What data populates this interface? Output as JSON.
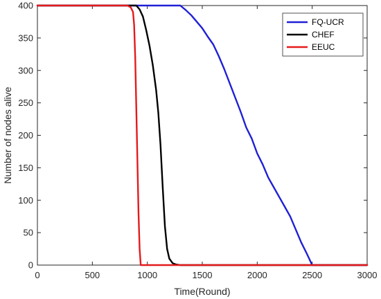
{
  "chart_data": {
    "type": "line",
    "title": "",
    "xlabel": "Time(Round)",
    "ylabel": "Number of nodes alive",
    "xlim": [
      0,
      3000
    ],
    "ylim": [
      0,
      400
    ],
    "xticks": [
      0,
      500,
      1000,
      1500,
      2000,
      2500,
      3000
    ],
    "yticks": [
      0,
      50,
      100,
      150,
      200,
      250,
      300,
      350,
      400
    ],
    "xtick_labels": [
      "0",
      "500",
      "1000",
      "1500",
      "2000",
      "2500",
      "3000"
    ],
    "ytick_labels": [
      "0",
      "50",
      "100",
      "150",
      "200",
      "250",
      "300",
      "350",
      "400"
    ],
    "grid": false,
    "legend_position": "top-right",
    "series": [
      {
        "name": "FQ-UCR",
        "color": "#1f1fd6",
        "x": [
          0,
          1300,
          1350,
          1400,
          1450,
          1500,
          1550,
          1600,
          1650,
          1700,
          1750,
          1800,
          1850,
          1900,
          1950,
          2000,
          2050,
          2100,
          2150,
          2200,
          2250,
          2300,
          2350,
          2400,
          2450,
          2500,
          3000
        ],
        "y": [
          400,
          400,
          393,
          385,
          375,
          365,
          352,
          340,
          322,
          302,
          280,
          258,
          236,
          212,
          195,
          172,
          155,
          135,
          120,
          105,
          90,
          75,
          55,
          35,
          18,
          0,
          0
        ]
      },
      {
        "name": "CHEF",
        "color": "#000000",
        "x": [
          0,
          900,
          930,
          960,
          990,
          1020,
          1050,
          1080,
          1100,
          1120,
          1140,
          1160,
          1180,
          1200,
          1230,
          1260,
          1300,
          3000
        ],
        "y": [
          400,
          400,
          394,
          383,
          362,
          338,
          308,
          270,
          235,
          185,
          120,
          60,
          25,
          10,
          3,
          1,
          0,
          0
        ]
      },
      {
        "name": "EEUC",
        "color": "#e41a1c",
        "x": [
          0,
          820,
          850,
          870,
          880,
          890,
          900,
          910,
          920,
          930,
          940,
          3000
        ],
        "y": [
          400,
          400,
          397,
          390,
          370,
          320,
          240,
          160,
          80,
          25,
          0,
          0
        ]
      }
    ]
  }
}
